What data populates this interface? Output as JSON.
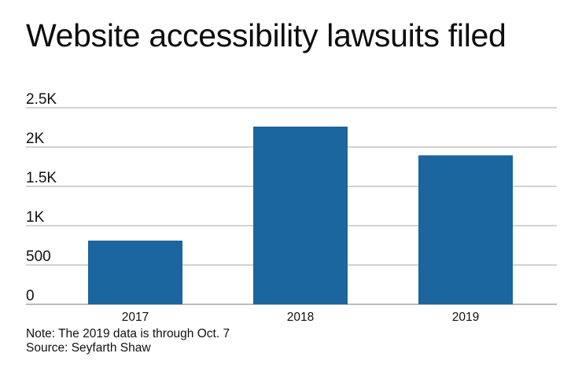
{
  "chart_data": {
    "type": "bar",
    "title": "Website accessibility lawsuits filed",
    "categories": [
      "2017",
      "2018",
      "2019"
    ],
    "values": [
      810,
      2260,
      1895
    ],
    "ylim": [
      0,
      2500
    ],
    "yticks": [
      0,
      500,
      1000,
      1500,
      2000,
      2500
    ],
    "ytick_labels": [
      "0",
      "500",
      "1K",
      "1.5K",
      "2K",
      "2.5K"
    ],
    "xlabel": "",
    "ylabel": "",
    "grid": true,
    "bar_color": "#1b669e"
  },
  "notes": {
    "note": "Note: The 2019 data is through Oct. 7",
    "source": "Source: Seyfarth Shaw"
  }
}
